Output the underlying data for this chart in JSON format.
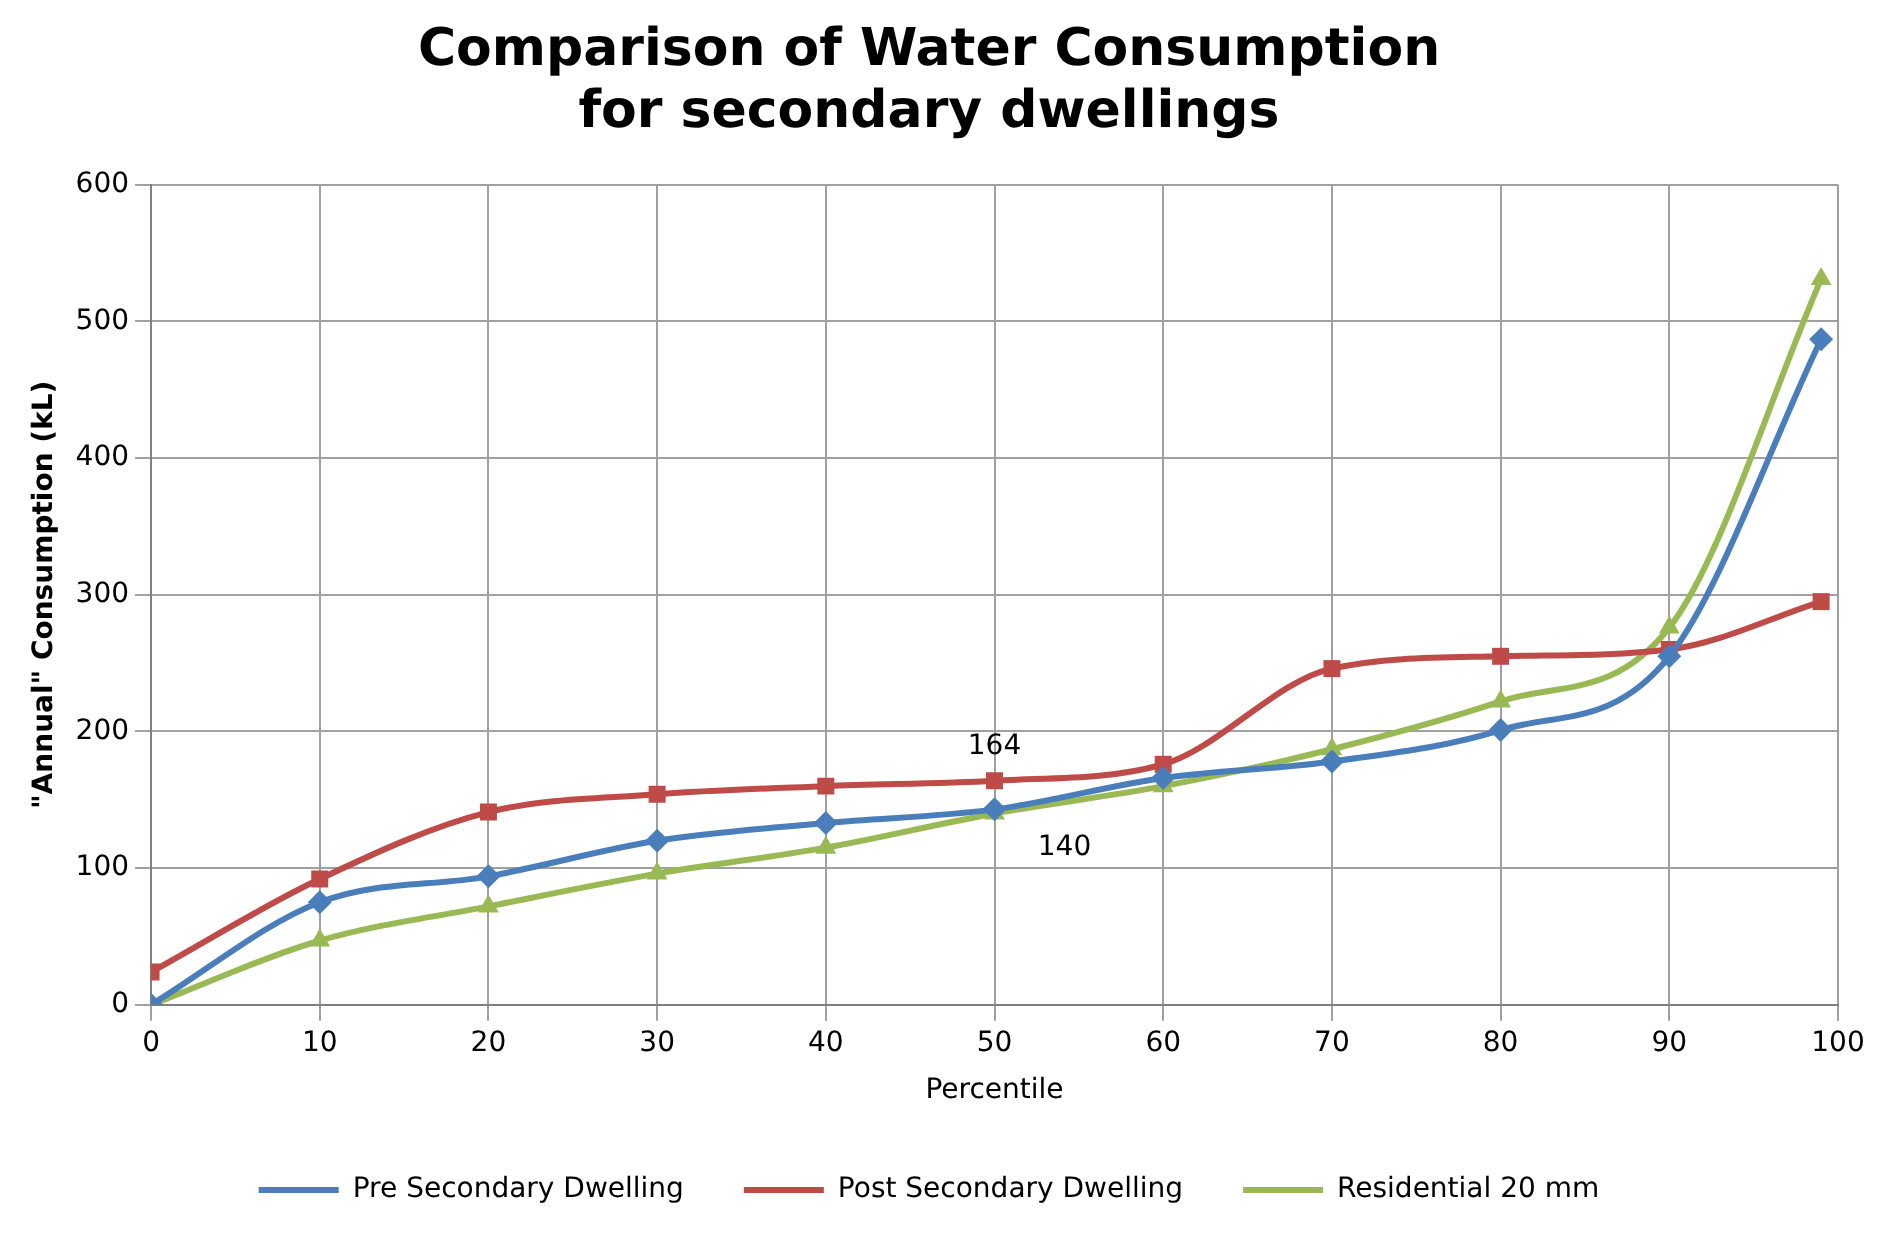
{
  "chart_data": {
    "type": "line",
    "title": "Comparison of Water Consumption for secondary dwellings",
    "xlabel": "Percentile",
    "ylabel": "\"Annual\" Consumption (kL)",
    "xlim": [
      0,
      100
    ],
    "xticks": [
      0,
      10,
      20,
      30,
      40,
      50,
      60,
      70,
      80,
      90,
      100
    ],
    "ylim": [
      0,
      600
    ],
    "yticks": [
      0,
      100,
      200,
      300,
      400,
      500,
      600
    ],
    "grid": true,
    "legend": "bottom",
    "series": [
      {
        "name": "Pre Secondary Dwelling",
        "color": "#4a7ebb",
        "marker": "diamond",
        "x": [
          0,
          10,
          20,
          30,
          40,
          50,
          60,
          70,
          80,
          90,
          99
        ],
        "values": [
          0,
          75,
          94,
          120,
          133,
          143,
          166,
          178,
          201,
          255,
          487
        ]
      },
      {
        "name": "Post Secondary Dwelling",
        "color": "#be4b48",
        "marker": "square",
        "x": [
          0,
          10,
          20,
          30,
          40,
          50,
          60,
          70,
          80,
          90,
          99
        ],
        "values": [
          24,
          92,
          141,
          154,
          160,
          164,
          176,
          246,
          255,
          260,
          295
        ],
        "value_labels": [
          null,
          null,
          null,
          null,
          null,
          "164",
          null,
          null,
          null,
          null,
          null
        ]
      },
      {
        "name": "Residential 20 mm",
        "color": "#98b954",
        "marker": "triangle",
        "x": [
          0,
          10,
          20,
          30,
          40,
          50,
          60,
          70,
          80,
          90,
          99
        ],
        "values": [
          0,
          47,
          72,
          96,
          115,
          140,
          160,
          187,
          222,
          276,
          531
        ],
        "value_labels": [
          null,
          null,
          null,
          null,
          null,
          "140",
          null,
          null,
          null,
          null,
          null
        ]
      }
    ]
  }
}
